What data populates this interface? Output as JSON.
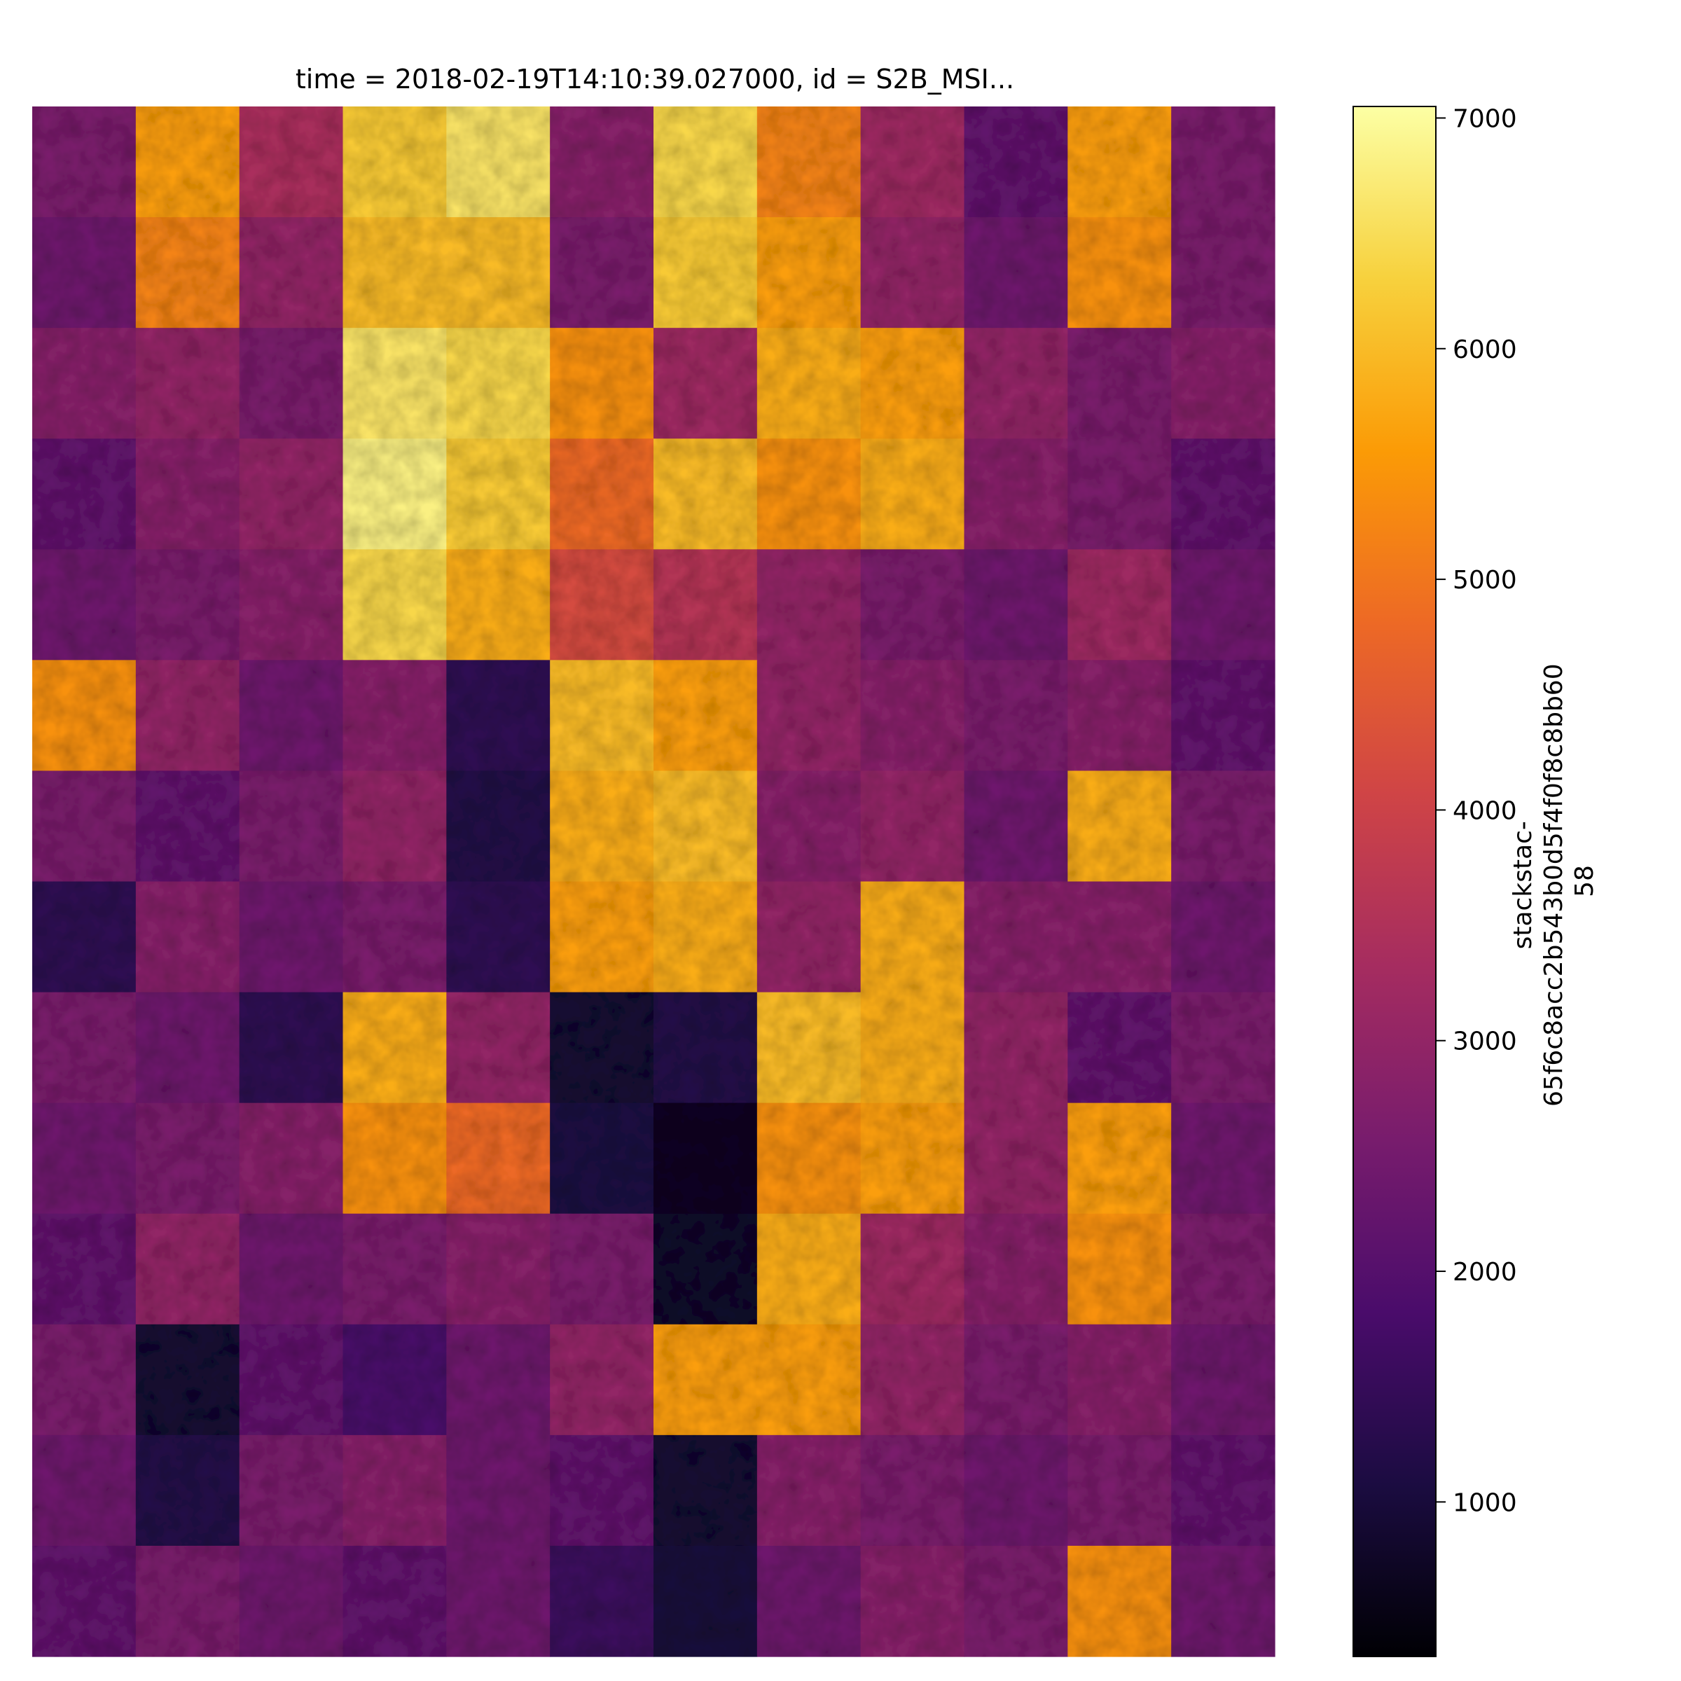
{
  "chart_data": {
    "type": "heatmap",
    "title": "time = 2018-02-19T14:10:39.027000, id = S2B_MSI...",
    "xlabel": "",
    "ylabel": "",
    "axes_visible": false,
    "colormap": "inferno",
    "colorbar": {
      "label_lines": [
        "stackstac-",
        "65f6c8acc2b543b0d5f4f0f8c8bb60",
        "58"
      ],
      "vmin": 330,
      "vmax": 7050,
      "ticks": [
        1000,
        2000,
        3000,
        4000,
        5000,
        6000,
        7000
      ],
      "tick_labels": [
        "1000",
        "2000",
        "3000",
        "4000",
        "5000",
        "6000",
        "7000"
      ],
      "placement": "right"
    },
    "stops": [
      "#000004",
      "#1b0c41",
      "#4a0c6b",
      "#781c6d",
      "#a52c60",
      "#cf4446",
      "#ed6925",
      "#fb9b06",
      "#f7d13d",
      "#fcffa4"
    ],
    "grid_rows": 14,
    "grid_cols": 12,
    "values": [
      [
        2600,
        5600,
        3400,
        6200,
        6600,
        2800,
        6400,
        5200,
        3200,
        2200,
        5600,
        2600
      ],
      [
        2400,
        5200,
        3000,
        6000,
        6000,
        2600,
        6200,
        5600,
        3000,
        2400,
        5400,
        2600
      ],
      [
        2800,
        3000,
        2600,
        6600,
        6400,
        5400,
        3200,
        5800,
        5600,
        3000,
        2600,
        2800
      ],
      [
        2200,
        2800,
        3000,
        6800,
        6200,
        4800,
        6000,
        5400,
        5800,
        2800,
        2600,
        2200
      ],
      [
        2400,
        2600,
        2800,
        6400,
        5800,
        4200,
        3600,
        3000,
        2600,
        2400,
        3200,
        2400
      ],
      [
        5400,
        3000,
        2400,
        2800,
        1400,
        6000,
        5600,
        3000,
        2800,
        2600,
        2800,
        2200
      ],
      [
        2600,
        2200,
        2600,
        3000,
        1200,
        5800,
        6000,
        2800,
        3000,
        2400,
        5800,
        2600
      ],
      [
        1400,
        2800,
        2400,
        2600,
        1400,
        5600,
        5800,
        3000,
        5800,
        2800,
        2800,
        2400
      ],
      [
        2600,
        2400,
        1400,
        5800,
        3000,
        900,
        1200,
        6000,
        5800,
        3000,
        2200,
        2600
      ],
      [
        2400,
        2600,
        2800,
        5400,
        4800,
        1100,
        700,
        5400,
        5600,
        3000,
        5600,
        2400
      ],
      [
        2200,
        3000,
        2400,
        2600,
        2800,
        2600,
        800,
        5800,
        3200,
        2800,
        5400,
        2600
      ],
      [
        2600,
        900,
        2200,
        1800,
        2400,
        3000,
        5600,
        5600,
        3000,
        2600,
        2800,
        2400
      ],
      [
        2400,
        1200,
        2600,
        2800,
        2400,
        2200,
        900,
        2800,
        2600,
        2400,
        2600,
        2200
      ],
      [
        2200,
        2600,
        2400,
        2200,
        2400,
        1600,
        1000,
        2400,
        2800,
        2600,
        5400,
        2400
      ]
    ]
  }
}
